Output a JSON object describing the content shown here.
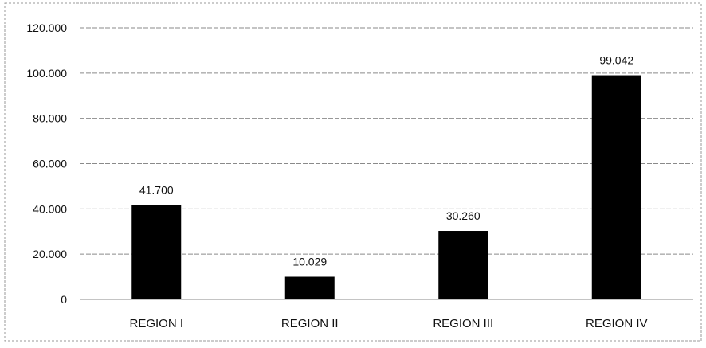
{
  "chart_data": {
    "type": "bar",
    "title": "",
    "xlabel": "",
    "ylabel": "",
    "categories": [
      "REGION I",
      "REGION II",
      "REGION III",
      "REGION IV"
    ],
    "values": [
      41700,
      10029,
      30260,
      99042
    ],
    "data_labels": [
      "41.700",
      "10.029",
      "30.260",
      "99.042"
    ],
    "ylim": [
      0,
      120000
    ],
    "yticks": [
      0,
      20000,
      40000,
      60000,
      80000,
      100000,
      120000
    ],
    "ytick_labels": [
      "0",
      "20.000",
      "40.000",
      "60.000",
      "80.000",
      "100.000",
      "120.000"
    ],
    "grid": true,
    "legend": "none",
    "colors": {
      "bar": "#000000",
      "grid": "#8a8a8a",
      "frame": "#9a9a9a"
    }
  }
}
